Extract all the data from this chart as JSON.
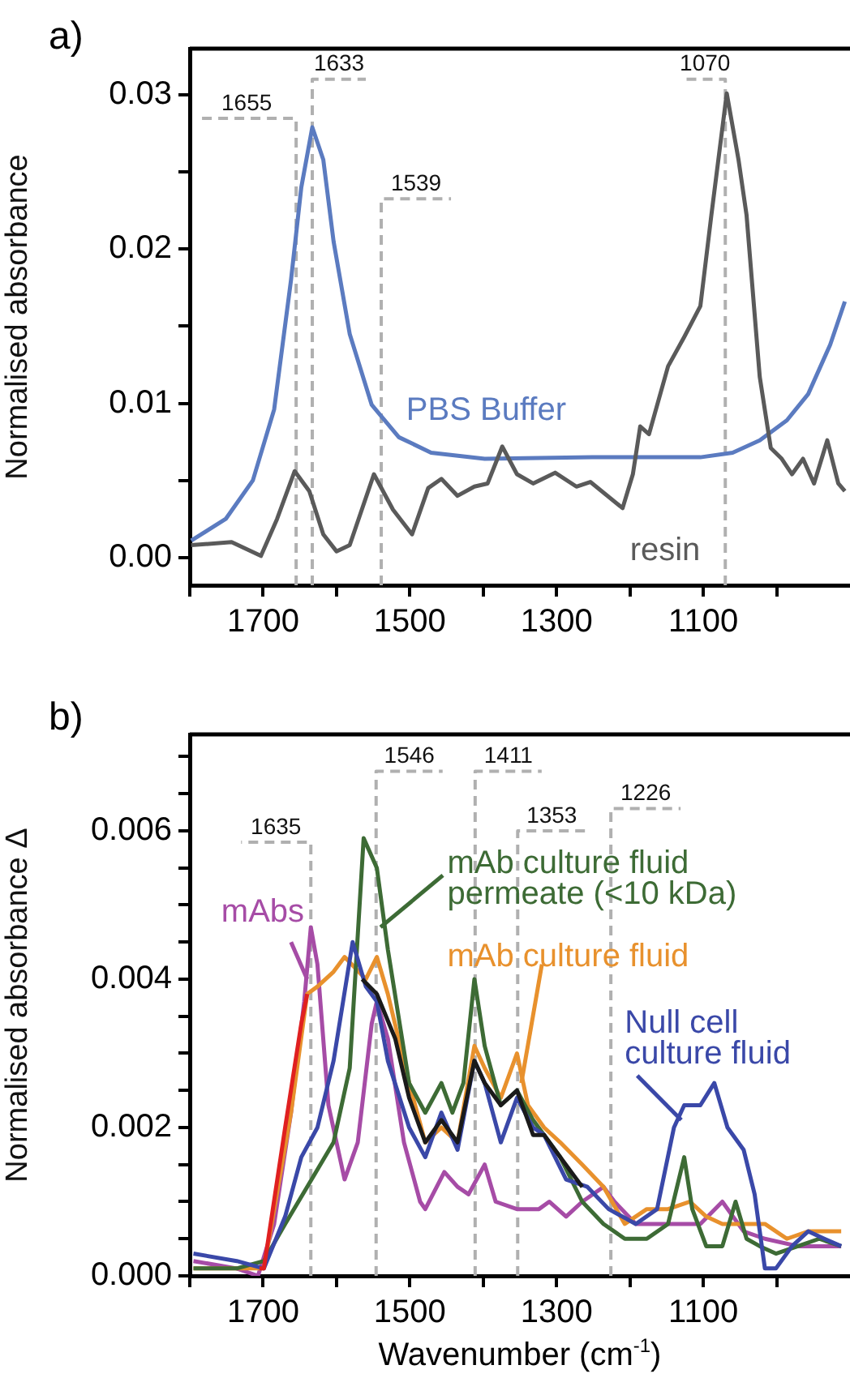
{
  "chart_data": [
    {
      "type": "line",
      "title": "a)",
      "ylabel": "Normalised absorbance",
      "xlim": [
        1800,
        900
      ],
      "ylim": [
        -0.0018,
        0.033
      ],
      "xticks": [
        {
          "value": 1800,
          "label": null
        },
        1700,
        {
          "value": 1600,
          "label": null
        },
        1500,
        {
          "value": 1400,
          "label": null
        },
        1300,
        {
          "value": 1200,
          "label": null
        },
        1100,
        {
          "value": 1000,
          "label": null
        }
      ],
      "yticks": [
        {
          "value": 0,
          "label": "0.00"
        },
        {
          "value": 0.005,
          "label": null
        },
        {
          "value": 0.01,
          "label": "0.01"
        },
        {
          "value": 0.015,
          "label": null
        },
        {
          "value": 0.02,
          "label": "0.02"
        },
        {
          "value": 0.025,
          "label": null
        },
        {
          "value": 0.03,
          "label": "0.03"
        }
      ],
      "series": [
        {
          "name": "PBS Buffer",
          "color": "#5b7bc0",
          "x": [
            1798,
            1751,
            1714,
            1685,
            1662,
            1648,
            1633,
            1618,
            1604,
            1582,
            1552,
            1515,
            1471,
            1398,
            1251,
            1104,
            1060,
            1023,
            986,
            957,
            927,
            907
          ],
          "values": [
            0.0011,
            0.0025,
            0.005,
            0.0096,
            0.018,
            0.024,
            0.0279,
            0.0258,
            0.0205,
            0.0145,
            0.0099,
            0.0078,
            0.0068,
            0.0064,
            0.0065,
            0.0065,
            0.0068,
            0.0076,
            0.0089,
            0.0106,
            0.0138,
            0.0166
          ]
        },
        {
          "name": "resin",
          "color": "#5a5a5a",
          "x": [
            1798,
            1743,
            1703,
            1681,
            1657,
            1637,
            1618,
            1600,
            1582,
            1549,
            1523,
            1497,
            1475,
            1457,
            1435,
            1412,
            1394,
            1374,
            1354,
            1332,
            1302,
            1273,
            1254,
            1210,
            1196,
            1186,
            1174,
            1148,
            1126,
            1104,
            1089,
            1068,
            1052,
            1041,
            1023,
            1008,
            993,
            979,
            964,
            949,
            931,
            916,
            907
          ],
          "values": [
            0.0008,
            0.001,
            0.0001,
            0.0025,
            0.0056,
            0.0043,
            0.0015,
            0.0004,
            0.0008,
            0.0054,
            0.0031,
            0.0015,
            0.0045,
            0.0051,
            0.004,
            0.0046,
            0.0048,
            0.0072,
            0.0054,
            0.0048,
            0.0055,
            0.0046,
            0.0049,
            0.0032,
            0.0054,
            0.0085,
            0.008,
            0.0124,
            0.0143,
            0.0163,
            0.0222,
            0.0301,
            0.0258,
            0.0222,
            0.0117,
            0.0071,
            0.0064,
            0.0054,
            0.0064,
            0.0048,
            0.0076,
            0.0048,
            0.0043
          ]
        }
      ],
      "ref_lines": [
        {
          "axis": "x",
          "value": 1655,
          "label": "1655",
          "color": "#b0b0b0",
          "line_style": "dashed"
        },
        {
          "axis": "x",
          "value": 1633,
          "label": "1633",
          "color": "#b0b0b0",
          "line_style": "dashed"
        },
        {
          "axis": "x",
          "value": 1539,
          "label": "1539",
          "color": "#b0b0b0",
          "line_style": "dashed"
        },
        {
          "axis": "x",
          "value": 1070,
          "label": "1070",
          "color": "#b0b0b0",
          "line_style": "dashed"
        }
      ]
    },
    {
      "type": "line",
      "title": "b)",
      "xlabel": "Wavenumber (cm$^{-1}$)",
      "ylabel": "Normalised absorbance Δ",
      "xlim": [
        1800,
        900
      ],
      "ylim": [
        0,
        0.0073
      ],
      "xticks": [
        {
          "value": 1800,
          "label": null
        },
        1700,
        {
          "value": 1600,
          "label": null
        },
        1500,
        {
          "value": 1400,
          "label": null
        },
        1300,
        {
          "value": 1200,
          "label": null
        },
        1100,
        {
          "value": 1000,
          "label": null
        }
      ],
      "yticks": [
        {
          "value": 0,
          "label": "0.000"
        },
        {
          "value": 0.0005,
          "label": null
        },
        {
          "value": 0.001,
          "label": null
        },
        {
          "value": 0.0015,
          "label": null
        },
        {
          "value": 0.002,
          "label": "0.002"
        },
        {
          "value": 0.0025,
          "label": null
        },
        {
          "value": 0.003,
          "label": null
        },
        {
          "value": 0.0035,
          "label": null
        },
        {
          "value": 0.004,
          "label": "0.004"
        },
        {
          "value": 0.0045,
          "label": null
        },
        {
          "value": 0.005,
          "label": null
        },
        {
          "value": 0.0055,
          "label": null
        },
        {
          "value": 0.006,
          "label": "0.006"
        },
        {
          "value": 0.0065,
          "label": null
        },
        {
          "value": 0.007,
          "label": null
        }
      ],
      "series": [
        {
          "name": "mAbs",
          "color": "#a64ca6",
          "x": [
            1795,
            1736,
            1707,
            1685,
            1662,
            1644,
            1635,
            1626,
            1611,
            1589,
            1571,
            1552,
            1545,
            1530,
            1508,
            1486,
            1479,
            1453,
            1435,
            1420,
            1398,
            1383,
            1354,
            1324,
            1310,
            1287,
            1265,
            1236,
            1221,
            1192,
            1163,
            1133,
            1104,
            1074,
            1045,
            1016,
            971,
            912
          ],
          "values": [
            0.0002,
            0.0001,
            0,
            0.0007,
            0.0022,
            0.0037,
            0.0047,
            0.0042,
            0.0023,
            0.0013,
            0.0018,
            0.0034,
            0.0037,
            0.0032,
            0.0018,
            0.001,
            0.0009,
            0.0014,
            0.0012,
            0.0011,
            0.0015,
            0.001,
            0.0009,
            0.0009,
            0.001,
            0.0008,
            0.001,
            0.0012,
            0.001,
            0.0007,
            0.0007,
            0.0007,
            0.0007,
            0.001,
            0.0006,
            0.0005,
            0.0004,
            0.0004
          ]
        },
        {
          "name": "mAb culture fluid",
          "color": "#e8912d",
          "x": [
            1795,
            1736,
            1699,
            1662,
            1640,
            1626,
            1604,
            1589,
            1560,
            1545,
            1530,
            1501,
            1479,
            1457,
            1435,
            1412,
            1398,
            1376,
            1354,
            1339,
            1317,
            1295,
            1265,
            1236,
            1207,
            1177,
            1148,
            1118,
            1096,
            1074,
            1056,
            1037,
            1016,
            986,
            957,
            912
          ],
          "values": [
            0.0001,
            0.0001,
            0.0001,
            0.0022,
            0.0038,
            0.0039,
            0.0041,
            0.0043,
            0.004,
            0.0043,
            0.0038,
            0.0026,
            0.0018,
            0.002,
            0.0018,
            0.0031,
            0.0028,
            0.0024,
            0.003,
            0.0023,
            0.002,
            0.0018,
            0.0015,
            0.0012,
            0.0007,
            0.0009,
            0.0009,
            0.001,
            0.0008,
            0.0007,
            0.0007,
            0.0007,
            0.0007,
            0.0005,
            0.0006,
            0.0006
          ]
        },
        {
          "name": "mAb culture fluid permeate (<10 kDa)",
          "color": "#3d6b35",
          "x": [
            1795,
            1736,
            1699,
            1670,
            1640,
            1604,
            1582,
            1563,
            1545,
            1530,
            1501,
            1479,
            1457,
            1442,
            1427,
            1412,
            1398,
            1376,
            1354,
            1332,
            1317,
            1295,
            1265,
            1236,
            1207,
            1177,
            1148,
            1126,
            1115,
            1096,
            1074,
            1056,
            1041,
            1023,
            1001,
            971,
            942,
            912
          ],
          "values": [
            0.0001,
            0.0001,
            0.0002,
            0.0007,
            0.0012,
            0.0018,
            0.0028,
            0.0059,
            0.0055,
            0.0044,
            0.0026,
            0.0022,
            0.0026,
            0.0022,
            0.0026,
            0.004,
            0.0031,
            0.0023,
            0.0025,
            0.0021,
            0.0019,
            0.0016,
            0.001,
            0.0007,
            0.0005,
            0.0005,
            0.0007,
            0.0016,
            0.0009,
            0.0004,
            0.0004,
            0.001,
            0.0005,
            0.0004,
            0.0003,
            0.0004,
            0.0005,
            0.0004
          ]
        },
        {
          "name": "Null cell culture fluid",
          "color": "#3a48a8",
          "x": [
            1795,
            1736,
            1699,
            1670,
            1648,
            1626,
            1604,
            1578,
            1560,
            1545,
            1530,
            1501,
            1479,
            1457,
            1435,
            1412,
            1398,
            1376,
            1354,
            1332,
            1317,
            1287,
            1258,
            1229,
            1192,
            1163,
            1140,
            1126,
            1104,
            1085,
            1067,
            1045,
            1030,
            1016,
            1001,
            979,
            957,
            935,
            912
          ],
          "values": [
            0.0003,
            0.0002,
            0.0001,
            0.0008,
            0.0016,
            0.002,
            0.0029,
            0.0045,
            0.0039,
            0.0037,
            0.0029,
            0.002,
            0.0016,
            0.0022,
            0.0017,
            0.0029,
            0.0026,
            0.0018,
            0.0024,
            0.002,
            0.0019,
            0.0013,
            0.0012,
            0.0009,
            0.0007,
            0.0009,
            0.002,
            0.0023,
            0.0023,
            0.0026,
            0.002,
            0.0017,
            0.0011,
            0.0001,
            0.0001,
            0.0004,
            0.0006,
            0.0005,
            0.0004
          ]
        },
        {
          "color": "#e02020",
          "x": [
            1705,
            1699,
            1670,
            1648,
            1640
          ],
          "values": [
            0.0001,
            0.0001,
            0.002,
            0.0034,
            0.0038
          ]
        },
        {
          "color": "#1a1a1a",
          "x": [
            1565,
            1545,
            1520,
            1501,
            1479,
            1457,
            1435,
            1412,
            1398,
            1376,
            1354,
            1332,
            1317,
            1295,
            1265
          ],
          "values": [
            0.004,
            0.0038,
            0.0032,
            0.0024,
            0.0018,
            0.0021,
            0.0018,
            0.0029,
            0.0026,
            0.0023,
            0.0025,
            0.0019,
            0.0019,
            0.0016,
            0.0012
          ]
        }
      ],
      "ref_lines": [
        {
          "axis": "x",
          "value": 1635,
          "label": "1635",
          "color": "#b0b0b0",
          "line_style": "dashed"
        },
        {
          "axis": "x",
          "value": 1546,
          "label": "1546",
          "color": "#b0b0b0",
          "line_style": "dashed"
        },
        {
          "axis": "x",
          "value": 1411,
          "label": "1411",
          "color": "#b0b0b0",
          "line_style": "dashed"
        },
        {
          "axis": "x",
          "value": 1353,
          "label": "1353",
          "color": "#b0b0b0",
          "line_style": "dashed"
        },
        {
          "axis": "x",
          "value": 1226,
          "label": "1226",
          "color": "#b0b0b0",
          "line_style": "dashed"
        }
      ]
    }
  ]
}
